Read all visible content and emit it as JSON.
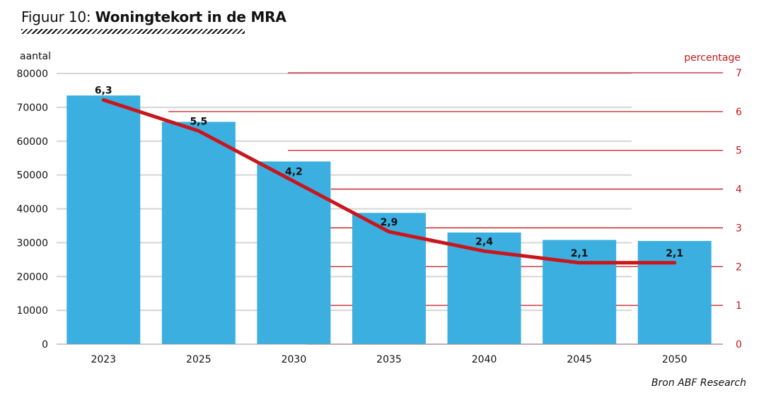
{
  "header": {
    "prefix": "Figuur 10:",
    "title": "Woningtekort in de MRA"
  },
  "source": "Bron ABF Research",
  "colors": {
    "bar": "#3aafe0",
    "line": "#c8161c",
    "grid": "#d6d6d6",
    "right_axis": "#c8161c",
    "text": "#111111"
  },
  "chart_data": {
    "type": "bar",
    "categories": [
      "2023",
      "2025",
      "2030",
      "2035",
      "2040",
      "2045",
      "2050"
    ],
    "series": [
      {
        "type": "bar",
        "axis": "left",
        "values": [
          73500,
          65700,
          54000,
          38800,
          33000,
          30800,
          30500
        ]
      },
      {
        "type": "line",
        "axis": "right",
        "values": [
          6.3,
          5.5,
          4.2,
          2.9,
          2.4,
          2.1,
          2.1
        ],
        "labels": [
          "6,3",
          "5,5",
          "4,2",
          "2,9",
          "2,4",
          "2,1",
          "2,1"
        ]
      }
    ],
    "ylabel_left": "aantal",
    "ylabel_right": "percentage",
    "ylim_left": [
      0,
      80000
    ],
    "ylim_right": [
      0,
      7
    ],
    "yticks_left": [
      "0",
      "10000",
      "20000",
      "30000",
      "40000",
      "50000",
      "60000",
      "70000",
      "80000"
    ],
    "yticks_right": [
      "0",
      "1",
      "2",
      "3",
      "4",
      "5",
      "6",
      "7"
    ],
    "grid": true
  }
}
